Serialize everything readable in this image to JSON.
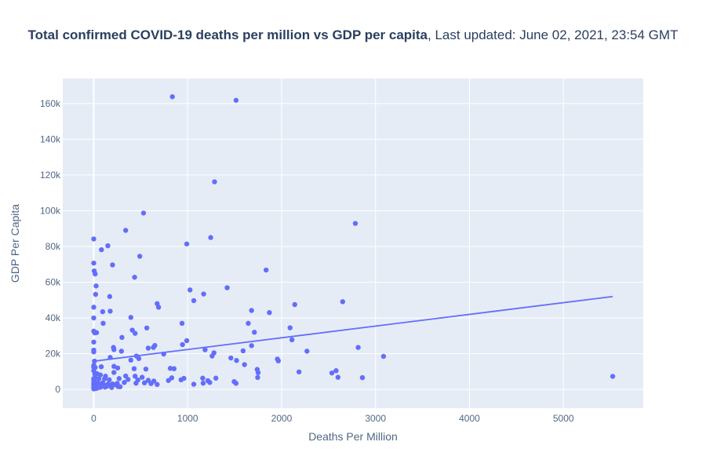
{
  "chart_data": {
    "type": "scatter",
    "title_bold": "Total confirmed COVID-19 deaths per million vs GDP per capita",
    "title_rest": ", Last updated: June 02, 2021, 23:54 GMT",
    "xlabel": "Deaths Per Million",
    "ylabel": "GDP Per Capita",
    "xlim": [
      -330,
      5850
    ],
    "ylim": [
      -10500,
      174000
    ],
    "x_ticks": [
      0,
      1000,
      2000,
      3000,
      4000,
      5000
    ],
    "x_tick_labels": [
      "0",
      "1000",
      "2000",
      "3000",
      "4000",
      "5000"
    ],
    "y_ticks": [
      0,
      20000,
      40000,
      60000,
      80000,
      100000,
      120000,
      140000,
      160000
    ],
    "y_tick_labels": [
      "0",
      "20k",
      "40k",
      "60k",
      "80k",
      "100k",
      "120k",
      "140k",
      "160k"
    ],
    "grid": true,
    "colors": {
      "plot_bg": "#e5ecf6",
      "grid": "#ffffff",
      "points": "#636efa",
      "trendline": "#636efa",
      "text": "#2a3f5f"
    },
    "points": [
      [
        837,
        163800
      ],
      [
        1515,
        161800
      ],
      [
        1286,
        116200
      ],
      [
        530,
        98700
      ],
      [
        2785,
        92900
      ],
      [
        340,
        89000
      ],
      [
        0,
        84200
      ],
      [
        1245,
        85000
      ],
      [
        990,
        81400
      ],
      [
        150,
        80400
      ],
      [
        82,
        78200
      ],
      [
        490,
        74500
      ],
      [
        0,
        70700
      ],
      [
        200,
        69700
      ],
      [
        1835,
        66800
      ],
      [
        5,
        66300
      ],
      [
        15,
        64600
      ],
      [
        435,
        62800
      ],
      [
        25,
        57900
      ],
      [
        1420,
        56900
      ],
      [
        1025,
        55700
      ],
      [
        1170,
        53400
      ],
      [
        20,
        53200
      ],
      [
        170,
        52000
      ],
      [
        1065,
        49700
      ],
      [
        2650,
        49100
      ],
      [
        675,
        48000
      ],
      [
        2140,
        47500
      ],
      [
        690,
        46000
      ],
      [
        0,
        46000
      ],
      [
        175,
        43800
      ],
      [
        95,
        43500
      ],
      [
        1680,
        44200
      ],
      [
        1870,
        43000
      ],
      [
        0,
        40000
      ],
      [
        395,
        40300
      ],
      [
        100,
        37000
      ],
      [
        940,
        37000
      ],
      [
        1645,
        37000
      ],
      [
        2090,
        34500
      ],
      [
        565,
        34400
      ],
      [
        410,
        33200
      ],
      [
        0,
        32600
      ],
      [
        10,
        31700
      ],
      [
        30,
        31800
      ],
      [
        440,
        31400
      ],
      [
        1710,
        32000
      ],
      [
        300,
        29100
      ],
      [
        0,
        26500
      ],
      [
        2110,
        27800
      ],
      [
        990,
        27300
      ],
      [
        1680,
        24500
      ],
      [
        650,
        24600
      ],
      [
        945,
        25100
      ],
      [
        635,
        23500
      ],
      [
        580,
        23100
      ],
      [
        210,
        23500
      ],
      [
        2815,
        23500
      ],
      [
        215,
        22300
      ],
      [
        1185,
        22200
      ],
      [
        0,
        22000
      ],
      [
        1590,
        21600
      ],
      [
        2270,
        21400
      ],
      [
        1280,
        20500
      ],
      [
        1260,
        18700
      ],
      [
        0,
        21000
      ],
      [
        295,
        21400
      ],
      [
        745,
        19800
      ],
      [
        455,
        18700
      ],
      [
        175,
        17900
      ],
      [
        1460,
        17600
      ],
      [
        1955,
        17000
      ],
      [
        1965,
        16000
      ],
      [
        1520,
        16200
      ],
      [
        395,
        16400
      ],
      [
        3085,
        18500
      ],
      [
        480,
        17300
      ],
      [
        1605,
        13900
      ],
      [
        215,
        12900
      ],
      [
        0,
        12500
      ],
      [
        80,
        12700
      ],
      [
        15,
        12300
      ],
      [
        255,
        12000
      ],
      [
        430,
        11600
      ],
      [
        555,
        11400
      ],
      [
        815,
        11800
      ],
      [
        855,
        11600
      ],
      [
        1740,
        11200
      ],
      [
        1750,
        9400
      ],
      [
        2185,
        9800
      ],
      [
        2535,
        9200
      ],
      [
        2580,
        10500
      ],
      [
        0,
        10500
      ],
      [
        215,
        9500
      ],
      [
        35,
        8800
      ],
      [
        70,
        8100
      ],
      [
        125,
        7400
      ],
      [
        340,
        7500
      ],
      [
        440,
        7400
      ],
      [
        515,
        6800
      ],
      [
        830,
        6500
      ],
      [
        960,
        6200
      ],
      [
        1160,
        6300
      ],
      [
        1300,
        6300
      ],
      [
        1745,
        6700
      ],
      [
        2600,
        6800
      ],
      [
        2860,
        6600
      ],
      [
        5525,
        7300
      ],
      [
        15,
        6800
      ],
      [
        0,
        6000
      ],
      [
        55,
        5900
      ],
      [
        115,
        5900
      ],
      [
        165,
        5400
      ],
      [
        270,
        6100
      ],
      [
        365,
        5600
      ],
      [
        470,
        5300
      ],
      [
        580,
        5100
      ],
      [
        640,
        4700
      ],
      [
        795,
        5000
      ],
      [
        930,
        5400
      ],
      [
        1215,
        4900
      ],
      [
        1495,
        4400
      ],
      [
        5,
        4800
      ],
      [
        10,
        4200
      ],
      [
        0,
        3800
      ],
      [
        30,
        3500
      ],
      [
        50,
        3300
      ],
      [
        95,
        3700
      ],
      [
        150,
        3000
      ],
      [
        200,
        3100
      ],
      [
        250,
        3400
      ],
      [
        325,
        3900
      ],
      [
        450,
        3500
      ],
      [
        540,
        3700
      ],
      [
        610,
        3300
      ],
      [
        675,
        2800
      ],
      [
        1065,
        2900
      ],
      [
        1165,
        3500
      ],
      [
        1235,
        3900
      ],
      [
        1515,
        3400
      ],
      [
        0,
        3000
      ],
      [
        20,
        2600
      ],
      [
        40,
        2200
      ],
      [
        60,
        2400
      ],
      [
        85,
        2000
      ],
      [
        110,
        2300
      ],
      [
        140,
        1800
      ],
      [
        180,
        2000
      ],
      [
        260,
        1600
      ],
      [
        280,
        1500
      ],
      [
        0,
        2200
      ],
      [
        10,
        1700
      ],
      [
        25,
        1400
      ],
      [
        45,
        1100
      ],
      [
        70,
        1200
      ],
      [
        0,
        1000
      ],
      [
        5,
        700
      ],
      [
        15,
        500
      ],
      [
        30,
        600
      ],
      [
        0,
        300
      ],
      [
        8,
        900
      ],
      [
        55,
        1700
      ],
      [
        120,
        1300
      ],
      [
        160,
        2600
      ],
      [
        190,
        1100
      ],
      [
        235,
        2600
      ],
      [
        0,
        5200
      ],
      [
        12,
        8500
      ],
      [
        0,
        13500
      ],
      [
        8,
        15800
      ]
    ],
    "trendline": {
      "x": [
        0,
        5525
      ],
      "y": [
        15800,
        52000
      ]
    }
  }
}
